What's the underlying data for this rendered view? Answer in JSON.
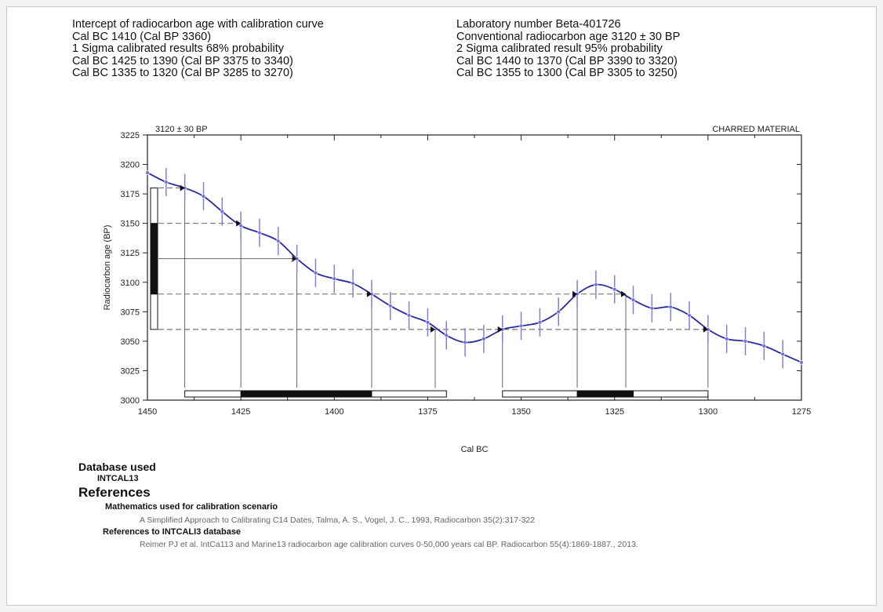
{
  "header_left": [
    "Intercept of radiocarbon age with calibration curve",
    "Cal BC 1410 (Cal BP 3360)",
    "1 Sigma calibrated results 68% probability",
    "Cal BC 1425 to 1390 (Cal BP 3375 to 3340)",
    "Cal BC 1335 to 1320 (Cal BP 3285 to 3270)"
  ],
  "header_right": [
    "Laboratory number Beta-401726",
    "Conventional radiocarbon age 3120 ± 30 BP",
    "2 Sigma calibrated result 95% probability",
    "Cal BC 1440 to 1370 (Cal BP 3390 to 3320)",
    "Cal BC 1355 to 1300 (Cal BP 3305 to 3250)"
  ],
  "chart_data": {
    "type": "line",
    "title": "3120 ± 30 BP",
    "annotation": "CHARRED MATERIAL",
    "xlabel": "Cal BC",
    "ylabel": "Radiocarbon age (BP)",
    "xlim": [
      1450,
      1275
    ],
    "ylim": [
      3000,
      3225
    ],
    "x_ticks": [
      "1450",
      "1425",
      "1400",
      "1375",
      "1350",
      "1325",
      "1300",
      "1275"
    ],
    "y_ticks": [
      "3225",
      "3200",
      "3175",
      "3150",
      "3125",
      "3100",
      "3075",
      "3050",
      "3025",
      "3000"
    ],
    "series": [
      {
        "x": [
          1450,
          1445,
          1440,
          1435,
          1430,
          1425,
          1420,
          1415,
          1410,
          1405,
          1400,
          1395,
          1390,
          1385,
          1380,
          1375,
          1370,
          1365,
          1360,
          1355,
          1350,
          1345,
          1340,
          1335,
          1330,
          1325,
          1320,
          1315,
          1310,
          1305,
          1300,
          1295,
          1290,
          1285,
          1280,
          1275
        ],
        "y": [
          3193,
          3185,
          3180,
          3173,
          3160,
          3148,
          3142,
          3135,
          3120,
          3108,
          3103,
          3099,
          3090,
          3080,
          3072,
          3066,
          3055,
          3049,
          3052,
          3060,
          3063,
          3066,
          3075,
          3090,
          3098,
          3094,
          3085,
          3078,
          3079,
          3072,
          3060,
          3052,
          3050,
          3046,
          3039,
          3032
        ],
        "err": [
          0,
          12,
          12,
          12,
          12,
          12,
          12,
          12,
          12,
          12,
          12,
          12,
          12,
          12,
          12,
          12,
          12,
          12,
          12,
          12,
          12,
          12,
          12,
          12,
          12,
          12,
          12,
          12,
          12,
          12,
          12,
          12,
          12,
          12,
          12,
          0
        ]
      }
    ],
    "intercept": {
      "age": 3120,
      "cal_bc": 1410
    },
    "sigma1_ages": [
      3090,
      3150
    ],
    "sigma2_ages": [
      3060,
      3180
    ],
    "sigma1_ranges": [
      [
        1425,
        1390
      ],
      [
        1335,
        1320
      ]
    ],
    "sigma2_ranges": [
      [
        1440,
        1370
      ],
      [
        1355,
        1300
      ]
    ],
    "markers": [
      {
        "x": 1440,
        "y": 3180
      },
      {
        "x": 1425,
        "y": 3150
      },
      {
        "x": 1410,
        "y": 3120
      },
      {
        "x": 1390,
        "y": 3090
      },
      {
        "x": 1373,
        "y": 3060
      },
      {
        "x": 1355,
        "y": 3060
      },
      {
        "x": 1335,
        "y": 3090
      },
      {
        "x": 1322,
        "y": 3090
      },
      {
        "x": 1300,
        "y": 3060
      }
    ],
    "colors": {
      "curve": "#2a2aa0",
      "error_bars": "#8080d8",
      "points": "#7070e0"
    }
  },
  "database": {
    "heading": "Database used",
    "name": "INTCAL13"
  },
  "references": {
    "heading": "References",
    "math_heading": "Mathematics used for calibration scenario",
    "math_text": "A Simplified Approach to Calibrating C14 Dates, Talma, A. S., Vogel, J. C., 1993, Radiocarbon 35(2):317-322",
    "db_heading": "References to INTCALI3 database",
    "db_text": "Reimer PJ et al. IntCa113 and Marine13 radiocarbon age calibration curves 0-50,000 years cal BP. Radiocarbon 55(4):1869-1887., 2013."
  }
}
